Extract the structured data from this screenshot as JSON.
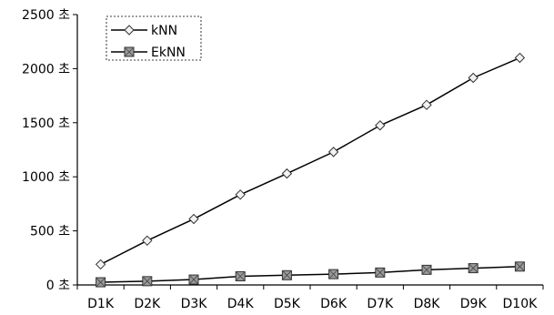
{
  "chart_data": {
    "type": "line",
    "title": "",
    "xlabel": "",
    "ylabel": "",
    "categories": [
      "D1K",
      "D2K",
      "D3K",
      "D4K",
      "D5K",
      "D6K",
      "D7K",
      "D8K",
      "D9K",
      "D10K"
    ],
    "y_ticks": [
      "0 초",
      "500 초",
      "1000 초",
      "1500 초",
      "2000 초",
      "2500 초"
    ],
    "ylim": [
      0,
      2500
    ],
    "grid": false,
    "legend_position": "top-left",
    "series": [
      {
        "name": "kNN",
        "marker": "diamond",
        "values": [
          190,
          410,
          610,
          835,
          1030,
          1230,
          1475,
          1665,
          1915,
          2100
        ]
      },
      {
        "name": "EkNN",
        "marker": "square",
        "values": [
          25,
          35,
          50,
          80,
          90,
          100,
          115,
          140,
          155,
          170
        ]
      }
    ]
  }
}
